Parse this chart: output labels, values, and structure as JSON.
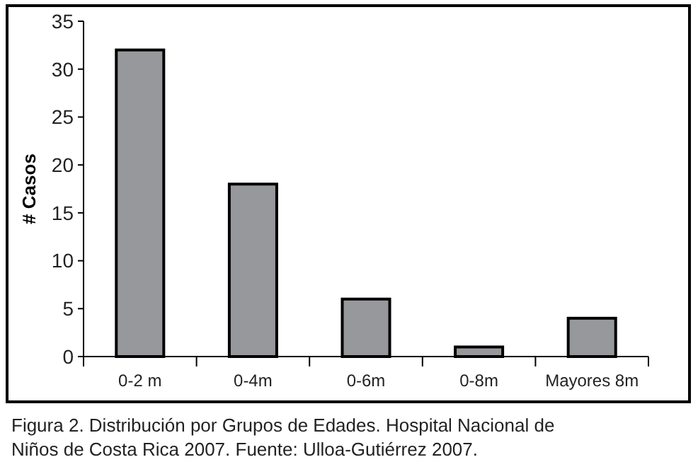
{
  "chart_data": {
    "type": "bar",
    "ylabel": "# Casos",
    "categories": [
      "0-2 m",
      "0-4m",
      "0-6m",
      "0-8m",
      "Mayores 8m"
    ],
    "values": [
      32,
      18,
      6,
      1,
      4
    ],
    "color": "#97989c",
    "ylim": [
      0,
      35
    ],
    "yticks": [
      0,
      5,
      10,
      15,
      20,
      25,
      30,
      35
    ],
    "grid": false,
    "annotations": [
      "Figura 2. Distribución por Grupos de Edades. Hospital Nacional de Niños de Costa Rica 2007. Fuente: Ulloa-Gutiérrez 2007."
    ]
  }
}
